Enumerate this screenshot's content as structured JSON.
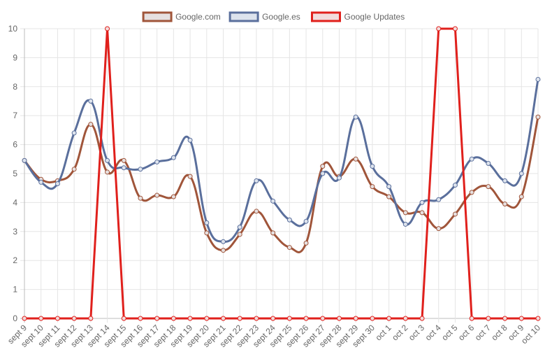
{
  "chart_data": {
    "type": "line",
    "title": "",
    "xlabel": "",
    "ylabel": "",
    "ylim": [
      0,
      10
    ],
    "yticks": [
      0,
      1,
      2,
      3,
      4,
      5,
      6,
      7,
      8,
      9,
      10
    ],
    "grid": true,
    "legend_position": "top",
    "categories": [
      "sept 9",
      "sept 10",
      "sept 11",
      "sept 12",
      "sept 13",
      "sept 14",
      "sept 15",
      "sept 16",
      "sept 17",
      "sept 18",
      "sept 19",
      "sept 20",
      "sept 21",
      "sept 22",
      "sept 23",
      "sept 24",
      "sept 25",
      "sept 26",
      "sept 27",
      "sept 28",
      "sept 29",
      "sept 30",
      "oct 1",
      "oct 2",
      "oct 3",
      "oct 4",
      "oct 5",
      "oct 6",
      "oct 7",
      "oct 8",
      "oct 9",
      "oct 10"
    ],
    "series": [
      {
        "name": "Google.com",
        "color": "#a0553a",
        "fill": "#e6e0e0",
        "smooth": true,
        "values": [
          5.45,
          4.8,
          4.75,
          5.15,
          6.7,
          5.05,
          5.45,
          4.15,
          4.25,
          4.2,
          4.9,
          2.95,
          2.35,
          2.9,
          3.7,
          2.95,
          2.45,
          2.6,
          5.25,
          4.9,
          5.5,
          4.55,
          4.2,
          3.65,
          3.65,
          3.1,
          3.6,
          4.35,
          4.55,
          3.95,
          4.2,
          6.95
        ]
      },
      {
        "name": "Google.es",
        "color": "#5a6f9c",
        "fill": "#dde3ed",
        "smooth": true,
        "values": [
          5.45,
          4.7,
          4.65,
          6.4,
          7.5,
          5.45,
          5.2,
          5.15,
          5.4,
          5.55,
          6.15,
          3.3,
          2.65,
          3.15,
          4.75,
          4.05,
          3.4,
          3.35,
          5.0,
          4.85,
          6.95,
          5.25,
          4.55,
          3.25,
          4.0,
          4.1,
          4.6,
          5.5,
          5.35,
          4.75,
          5.0,
          8.25
        ]
      },
      {
        "name": "Google Updates",
        "color": "#e0201c",
        "fill": "#f2dcdc",
        "smooth": false,
        "values": [
          0,
          0,
          0,
          0,
          0,
          10,
          0,
          0,
          0,
          0,
          0,
          0,
          0,
          0,
          0,
          0,
          0,
          0,
          0,
          0,
          0,
          0,
          0,
          0,
          0,
          10,
          10,
          0,
          0,
          0,
          0,
          0
        ]
      }
    ]
  }
}
